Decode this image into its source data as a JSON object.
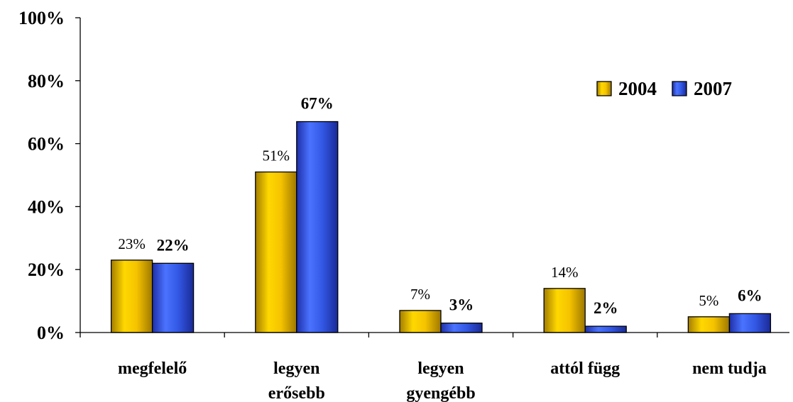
{
  "chart_data": {
    "type": "bar",
    "categories": [
      [
        "megfelelő"
      ],
      [
        "legyen",
        "erősebb"
      ],
      [
        "legyen",
        "gyengébb"
      ],
      [
        "attól függ"
      ],
      [
        "nem tudja"
      ]
    ],
    "series": [
      {
        "name": "2004",
        "values": [
          23,
          51,
          7,
          14,
          5
        ],
        "labels": [
          "23%",
          "51%",
          "7%",
          "14%",
          "5%"
        ],
        "color": "#F2C200",
        "label_style": "normal"
      },
      {
        "name": "2007",
        "values": [
          22,
          67,
          3,
          2,
          6
        ],
        "labels": [
          "22%",
          "67%",
          "3%",
          "2%",
          "6%"
        ],
        "color": "#3358E6",
        "label_style": "bold"
      }
    ],
    "yticks": [
      "0%",
      "20%",
      "40%",
      "60%",
      "80%",
      "100%"
    ],
    "ylim": [
      0,
      100
    ],
    "title": "",
    "xlabel": "",
    "ylabel": "",
    "grid": false,
    "legend_position": "top-right"
  }
}
